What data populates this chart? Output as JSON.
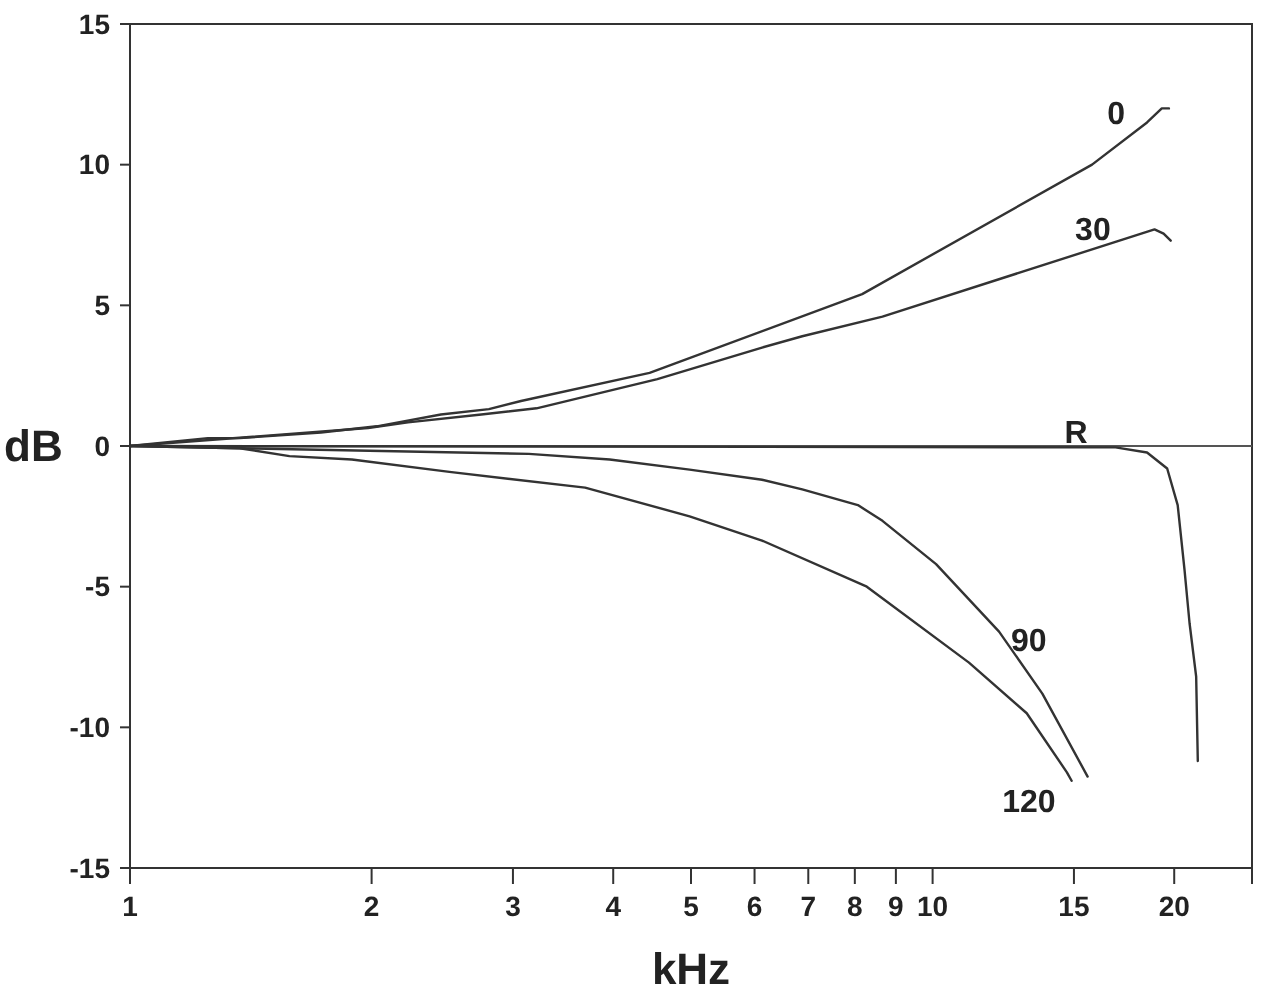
{
  "chart_data": {
    "type": "line",
    "xlabel": "kHz",
    "ylabel": "dB",
    "log": "x",
    "xlim": [
      1,
      25
    ],
    "xticks": [
      1,
      2,
      3,
      4,
      5,
      6,
      7,
      8,
      9,
      10,
      15,
      20,
      {
        "value": 25,
        "label": null
      }
    ],
    "ylim": [
      -15,
      15
    ],
    "yticks": [
      -15,
      -10,
      -5,
      0,
      5,
      10,
      15
    ],
    "grid": false,
    "ref_lines": [
      {
        "axis": "y",
        "value": 0,
        "color": "#555555"
      }
    ],
    "series": [
      {
        "name": "0",
        "color": "#333333",
        "x": [
          1,
          1.25,
          1.37,
          1.73,
          2.03,
          2.44,
          2.8,
          3.07,
          4.44,
          8.17,
          15.8,
          18.5,
          19.3,
          19.7
        ],
        "values": [
          0,
          0.28,
          0.28,
          0.48,
          0.7,
          1.12,
          1.31,
          1.6,
          2.6,
          5.4,
          10,
          11.5,
          12,
          12
        ]
      },
      {
        "name": "30",
        "color": "#333333",
        "x": [
          1,
          1.98,
          2.22,
          2.74,
          3.21,
          4.54,
          6.13,
          6.88,
          8.66,
          18.9,
          19.4,
          19.8
        ],
        "values": [
          0,
          0.64,
          0.84,
          1.12,
          1.34,
          2.38,
          3.5,
          3.9,
          4.6,
          7.7,
          7.55,
          7.3
        ]
      },
      {
        "name": "R",
        "color": "#333333",
        "x": [
          1,
          16.9,
          18.5,
          19.6,
          20.2,
          20.6,
          20.9,
          21.3,
          21.4
        ],
        "values": [
          0,
          -0.05,
          -0.23,
          -0.8,
          -2.1,
          -4.4,
          -6.3,
          -8.2,
          -11.2
        ]
      },
      {
        "name": "90",
        "color": "#333333",
        "x": [
          1,
          1.37,
          3.14,
          3.96,
          4.98,
          6.13,
          6.88,
          8.07,
          8.66,
          10.1,
          12.1,
          13.7,
          15.6
        ],
        "values": [
          0,
          -0.08,
          -0.28,
          -0.48,
          -0.84,
          -1.2,
          -1.54,
          -2.1,
          -2.66,
          -4.2,
          -6.6,
          -8.8,
          -11.75
        ]
      },
      {
        "name": "120",
        "color": "#333333",
        "x": [
          1,
          1.37,
          1.58,
          1.89,
          2.5,
          3.69,
          4.98,
          6.13,
          8.28,
          11.1,
          13.1,
          14.7,
          14.9
        ],
        "values": [
          0,
          -0.08,
          -0.36,
          -0.48,
          -0.92,
          -1.48,
          -2.5,
          -3.36,
          -5,
          -7.7,
          -9.5,
          -11.6,
          -11.9
        ]
      }
    ]
  }
}
